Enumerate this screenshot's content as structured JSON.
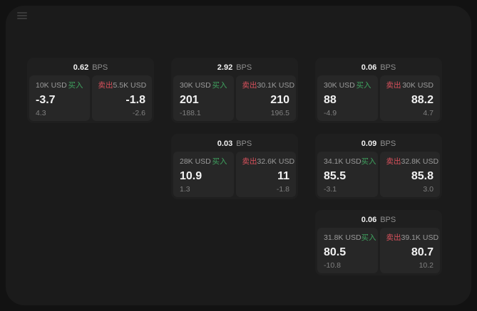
{
  "labels": {
    "bps": "BPS",
    "buy": "买入",
    "sell": "卖出"
  },
  "colors": {
    "buy_green": "#3fa35f",
    "sell_red": "#d9515c",
    "card_bg": "#1f1f1f",
    "panel_bg": "#272727",
    "window_bg": "#1b1b1b",
    "page_bg": "#121212"
  },
  "cards": [
    {
      "row": 1,
      "col": 1,
      "bps": "0.62",
      "buy": {
        "amount": "10K USD",
        "price": "-3.7",
        "delta": "4.3"
      },
      "sell": {
        "amount": "5.5K USD",
        "price": "-1.8",
        "delta": "-2.6"
      }
    },
    {
      "row": 1,
      "col": 2,
      "bps": "2.92",
      "buy": {
        "amount": "30K USD",
        "price": "201",
        "delta": "-188.1"
      },
      "sell": {
        "amount": "30.1K USD",
        "price": "210",
        "delta": "196.5"
      }
    },
    {
      "row": 1,
      "col": 3,
      "bps": "0.06",
      "buy": {
        "amount": "30K USD",
        "price": "88",
        "delta": "-4.9"
      },
      "sell": {
        "amount": "30K USD",
        "price": "88.2",
        "delta": "4.7"
      }
    },
    {
      "row": 2,
      "col": 2,
      "bps": "0.03",
      "buy": {
        "amount": "28K USD",
        "price": "10.9",
        "delta": "1.3"
      },
      "sell": {
        "amount": "32.6K USD",
        "price": "11",
        "delta": "-1.8"
      }
    },
    {
      "row": 2,
      "col": 3,
      "bps": "0.09",
      "buy": {
        "amount": "34.1K USD",
        "price": "85.5",
        "delta": "-3.1"
      },
      "sell": {
        "amount": "32.8K USD",
        "price": "85.8",
        "delta": "3.0"
      }
    },
    {
      "row": 3,
      "col": 3,
      "bps": "0.06",
      "buy": {
        "amount": "31.8K USD",
        "price": "80.5",
        "delta": "-10.8"
      },
      "sell": {
        "amount": "39.1K USD",
        "price": "80.7",
        "delta": "10.2"
      }
    }
  ]
}
